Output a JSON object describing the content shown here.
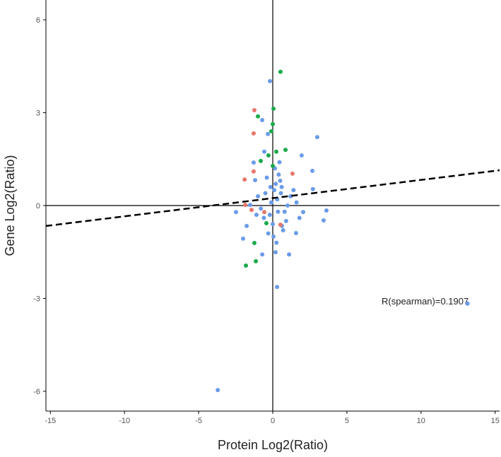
{
  "chart_data": {
    "type": "scatter",
    "x_label": "Protein Log2(Ratio)",
    "y_label": "Gene Log2(Ratio)",
    "annotation": "R(spearman)=0.1907",
    "xlim": [
      -15.3,
      15.3
    ],
    "ylim": [
      -6.64,
      6.64
    ],
    "xticks": [
      -15,
      -10,
      -5,
      0,
      5,
      10,
      15
    ],
    "yticks": [
      -6,
      -3,
      0,
      3,
      6
    ],
    "trendline": {
      "x": [
        -15.3,
        15.3
      ],
      "y": [
        -0.66,
        1.14
      ],
      "color": "#000000"
    },
    "series": [
      {
        "color": "#6a9be8",
        "x": [
          -0.19,
          3.0,
          0.29,
          -3.71,
          13.14,
          3.62,
          3.43,
          2.71,
          -0.71,
          -0.33,
          1.95,
          2.67,
          -2.48,
          -2.0,
          -0.71,
          0.19,
          1.1,
          1.57,
          2.05,
          -1.19,
          -1.29,
          -0.57,
          -1.52,
          -1.76,
          0.62,
          0.1,
          0.3,
          -0.2,
          0.5,
          0.8,
          -0.5,
          0.0,
          0.4,
          -0.1,
          1.2,
          0.9,
          -0.8,
          0.2,
          0.6,
          -0.3,
          1.0,
          1.4,
          -0.6,
          0.7,
          0.15,
          -0.4,
          0.35,
          1.6,
          -1.0,
          0.55,
          0.05,
          -0.15,
          0.45,
          1.8,
          -1.1,
          0.25
        ],
        "y": [
          4.02,
          2.21,
          -2.63,
          -5.96,
          -3.17,
          -0.16,
          -0.48,
          0.53,
          2.76,
          2.31,
          1.62,
          1.12,
          -0.21,
          -1.07,
          -1.58,
          -1.51,
          -1.58,
          -0.89,
          -0.21,
          0.82,
          1.39,
          1.74,
          0.02,
          -0.66,
          -0.66,
          0.5,
          0.2,
          -0.3,
          0.8,
          -0.2,
          0.4,
          -0.6,
          1.0,
          0.1,
          0.3,
          -0.5,
          -0.1,
          0.7,
          0.6,
          -0.9,
          0.0,
          0.5,
          -0.4,
          -0.8,
          1.2,
          0.9,
          -0.2,
          0.1,
          0.3,
          0.4,
          -1.0,
          0.6,
          1.4,
          -0.4,
          -0.3,
          -1.2
        ]
      },
      {
        "color": "#e8756a",
        "x": [
          -1.24,
          -1.29,
          -1.29,
          -1.9,
          -1.86,
          -1.43,
          1.33,
          0.52,
          -0.57
        ],
        "y": [
          3.08,
          2.33,
          1.1,
          0.84,
          0.02,
          -0.14,
          1.03,
          -0.62,
          -0.21
        ]
      },
      {
        "color": "#1aaa4a",
        "x": [
          0.52,
          0.05,
          -1.0,
          0.0,
          -0.1,
          0.86,
          -0.29,
          0.24,
          -0.81,
          0.0,
          -1.24,
          -1.81,
          -1.14,
          -0.43
        ],
        "y": [
          4.32,
          3.13,
          2.88,
          2.63,
          2.4,
          1.8,
          1.62,
          1.74,
          1.44,
          1.28,
          -1.21,
          -1.94,
          -1.8,
          -0.57
        ]
      }
    ]
  }
}
